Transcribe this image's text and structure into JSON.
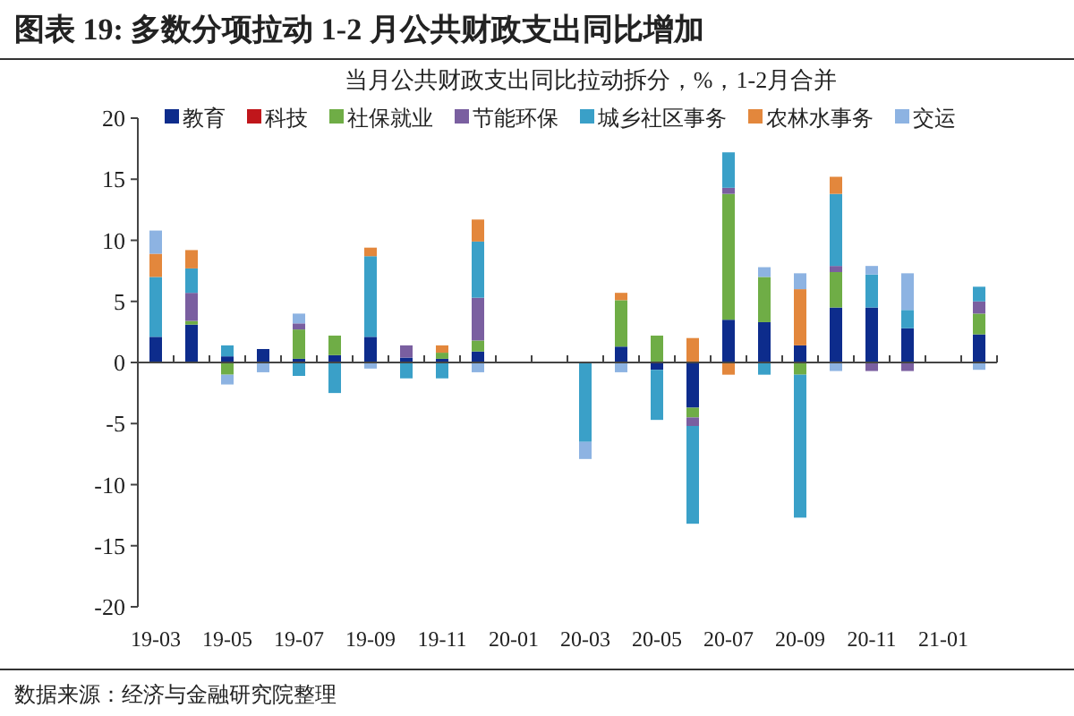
{
  "chart_data": {
    "type": "bar",
    "stacked": true,
    "title": "图表 19:  多数分项拉动 1-2 月公共财政支出同比增加",
    "subtitle": "当月公共财政支出同比拉动拆分，%，1-2月合并",
    "annotations": [
      "数据来源：经济与金融研究院整理"
    ],
    "categories": [
      "19-03",
      null,
      "19-05",
      null,
      "19-07",
      null,
      "19-09",
      null,
      "19-11",
      null,
      "20-01",
      null,
      "20-03",
      null,
      "20-05",
      null,
      "20-07",
      null,
      "20-09",
      null,
      "20-11",
      null,
      "21-01",
      null
    ],
    "ylim": [
      -20,
      20
    ],
    "yticks": [
      -20,
      -15,
      -10,
      -5,
      0,
      5,
      10,
      15,
      20
    ],
    "legend": "top",
    "series": [
      {
        "name": "教育",
        "color": "#0d2c8c",
        "values": [
          2.1,
          3.1,
          0.5,
          1.1,
          0.3,
          0.6,
          2.1,
          0.4,
          0.3,
          0.9,
          null,
          null,
          0,
          1.3,
          -0.6,
          -3.7,
          3.5,
          3.3,
          1.4,
          4.5,
          4.5,
          2.8,
          null,
          2.3
        ]
      },
      {
        "name": "科技",
        "color": "#c0161b",
        "values": [
          0,
          0,
          0,
          0,
          0,
          0,
          0,
          0,
          0,
          0,
          null,
          null,
          0,
          0,
          0,
          0,
          0,
          0,
          0,
          0,
          0,
          0,
          null,
          0
        ]
      },
      {
        "name": "社保就业",
        "color": "#6fad46",
        "values": [
          0,
          0.3,
          -1.0,
          0,
          2.4,
          1.6,
          0,
          0,
          0.5,
          0.9,
          null,
          null,
          0,
          3.8,
          2.2,
          -0.8,
          10.3,
          3.7,
          -1.0,
          2.9,
          0,
          0,
          null,
          1.7
        ]
      },
      {
        "name": "节能环保",
        "color": "#7a5fa0",
        "values": [
          0,
          2.3,
          0,
          0,
          0.5,
          0,
          0,
          1.0,
          0,
          3.5,
          null,
          null,
          0,
          0,
          0,
          -0.7,
          0.5,
          0,
          0,
          0.5,
          -0.7,
          -0.7,
          null,
          1.0
        ]
      },
      {
        "name": "城乡社区事务",
        "color": "#3aa0c8",
        "values": [
          4.9,
          2.0,
          0.9,
          0,
          -1.1,
          -2.5,
          6.6,
          -1.3,
          -1.3,
          4.6,
          null,
          null,
          -6.5,
          0,
          -4.1,
          -8.0,
          2.9,
          -1.0,
          -11.7,
          5.9,
          2.7,
          1.5,
          null,
          1.2
        ]
      },
      {
        "name": "农林水事务",
        "color": "#e3873c",
        "values": [
          1.9,
          1.5,
          0,
          0,
          0,
          0,
          0.7,
          0,
          0.6,
          1.8,
          null,
          null,
          0,
          0.6,
          0,
          2.0,
          -1.0,
          0,
          4.6,
          1.4,
          0,
          0,
          null,
          0
        ]
      },
      {
        "name": "交运",
        "color": "#8db3e2",
        "values": [
          1.9,
          0,
          -0.8,
          -0.8,
          0.8,
          0,
          -0.5,
          0,
          0,
          -0.8,
          null,
          null,
          -1.4,
          -0.8,
          0,
          0,
          0,
          0.8,
          1.3,
          -0.7,
          0.7,
          3.0,
          null,
          -0.6
        ]
      }
    ]
  }
}
